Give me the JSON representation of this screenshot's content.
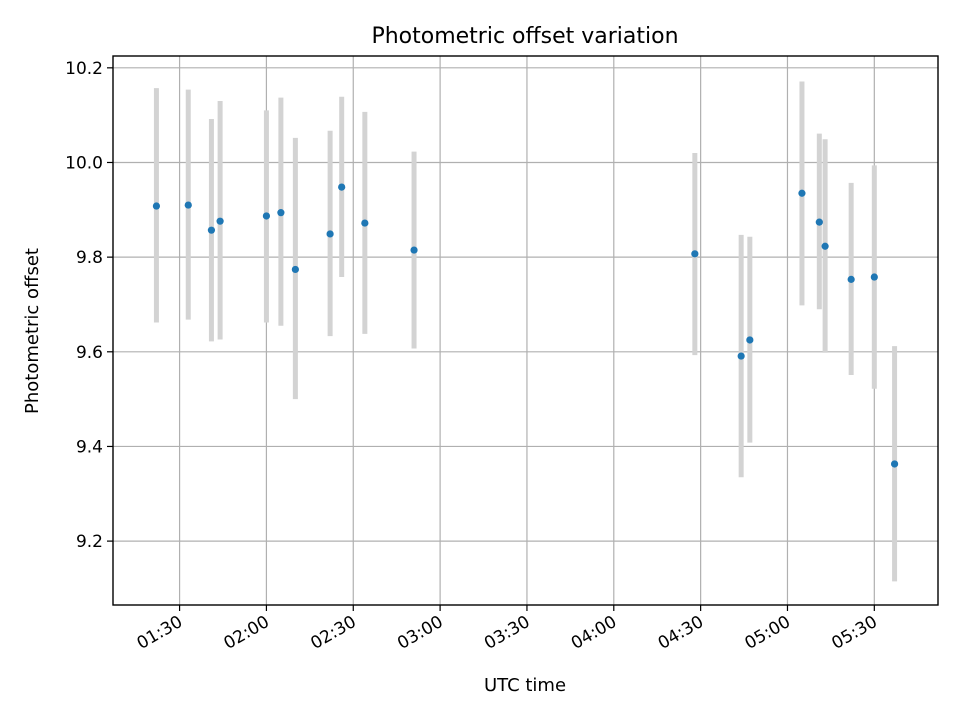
{
  "chart_data": {
    "type": "scatter",
    "title": "Photometric offset variation",
    "xlabel": "UTC time",
    "ylabel": "Photometric offset",
    "x_ticks": [
      "01:30",
      "02:00",
      "02:30",
      "03:00",
      "03:30",
      "04:00",
      "04:30",
      "05:00",
      "05:30"
    ],
    "y_ticks": [
      "9.2",
      "9.4",
      "9.6",
      "9.8",
      "10.0",
      "10.2"
    ],
    "xlim": [
      "01:07",
      "05:52"
    ],
    "ylim": [
      9.065,
      10.225
    ],
    "grid": true,
    "point_color": "#1f77b4",
    "errorbar_color": "#d3d3d3",
    "series": [
      {
        "points": [
          {
            "x": "01:22",
            "y": 9.908,
            "ylow": 9.662,
            "yhigh": 10.157
          },
          {
            "x": "01:33",
            "y": 9.91,
            "ylow": 9.668,
            "yhigh": 10.154
          },
          {
            "x": "01:41",
            "y": 9.857,
            "ylow": 9.622,
            "yhigh": 10.092
          },
          {
            "x": "01:44",
            "y": 9.876,
            "ylow": 9.626,
            "yhigh": 10.13
          },
          {
            "x": "02:00",
            "y": 9.887,
            "ylow": 9.662,
            "yhigh": 10.11
          },
          {
            "x": "02:05",
            "y": 9.894,
            "ylow": 9.655,
            "yhigh": 10.137
          },
          {
            "x": "02:10",
            "y": 9.774,
            "ylow": 9.5,
            "yhigh": 10.052
          },
          {
            "x": "02:22",
            "y": 9.849,
            "ylow": 9.633,
            "yhigh": 10.067
          },
          {
            "x": "02:26",
            "y": 9.948,
            "ylow": 9.758,
            "yhigh": 10.139
          },
          {
            "x": "02:34",
            "y": 9.872,
            "ylow": 9.638,
            "yhigh": 10.107
          },
          {
            "x": "02:51",
            "y": 9.815,
            "ylow": 9.607,
            "yhigh": 10.023
          },
          {
            "x": "04:28",
            "y": 9.807,
            "ylow": 9.593,
            "yhigh": 10.02
          },
          {
            "x": "04:44",
            "y": 9.591,
            "ylow": 9.335,
            "yhigh": 9.847
          },
          {
            "x": "04:47",
            "y": 9.625,
            "ylow": 9.408,
            "yhigh": 9.843
          },
          {
            "x": "05:05",
            "y": 9.935,
            "ylow": 9.698,
            "yhigh": 10.171
          },
          {
            "x": "05:11",
            "y": 9.874,
            "ylow": 9.69,
            "yhigh": 10.061
          },
          {
            "x": "05:13",
            "y": 9.823,
            "ylow": 9.598,
            "yhigh": 10.049
          },
          {
            "x": "05:22",
            "y": 9.753,
            "ylow": 9.551,
            "yhigh": 9.957
          },
          {
            "x": "05:30",
            "y": 9.758,
            "ylow": 9.522,
            "yhigh": 9.994
          },
          {
            "x": "05:37",
            "y": 9.363,
            "ylow": 9.115,
            "yhigh": 9.612
          }
        ]
      }
    ]
  }
}
